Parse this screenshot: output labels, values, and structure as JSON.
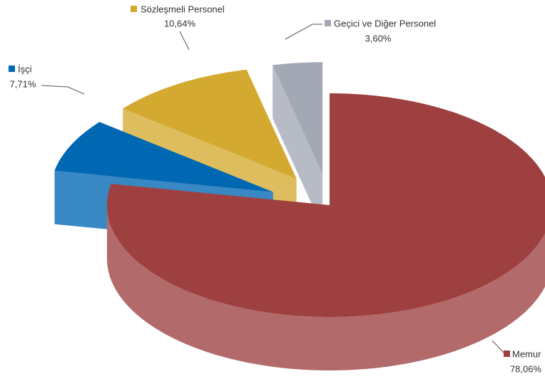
{
  "chart_data": {
    "type": "pie",
    "categories": [
      "Memur",
      "İşçi",
      "Sözleşmeli Personel",
      "Geçici ve Diğer Personel"
    ],
    "values": [
      78.06,
      7.71,
      10.64,
      3.6
    ],
    "value_labels": [
      "78,06%",
      "7,71%",
      "10,64%",
      "3,60%"
    ],
    "colors": [
      "#9e4040",
      "#0067b2",
      "#d3aa2f",
      "#a2a8b4"
    ]
  }
}
